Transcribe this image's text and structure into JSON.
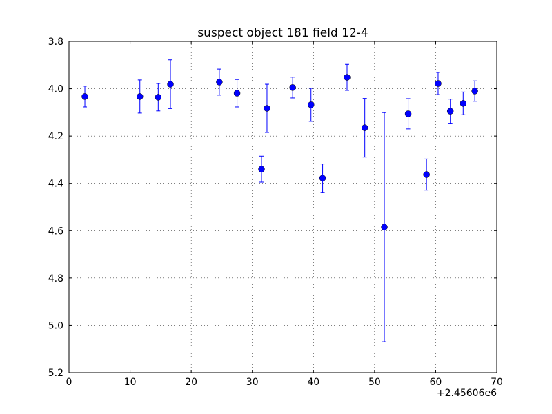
{
  "chart_data": {
    "type": "errorbar",
    "title": "suspect object 181 field 12-4",
    "x_offset_label": "+2.45606e6",
    "xlim": [
      0,
      70
    ],
    "xticks": [
      0,
      10,
      20,
      30,
      40,
      50,
      60,
      70
    ],
    "ylim": [
      3.8,
      5.2
    ],
    "y_inverted": true,
    "yticks": [
      3.8,
      {
        "value": 4,
        "label": "4.0"
      },
      4.2,
      4.4,
      4.6,
      4.8,
      {
        "value": 5,
        "label": "5.0"
      },
      5.2
    ],
    "grid": true,
    "series": [
      {
        "color": "#0000ff",
        "x": [
          2.6,
          11.6,
          14.6,
          16.6,
          24.6,
          27.5,
          31.5,
          32.4,
          36.6,
          39.6,
          41.5,
          45.5,
          48.4,
          51.6,
          55.5,
          58.5,
          60.4,
          62.4,
          64.5,
          66.4
        ],
        "values": [
          4.033,
          4.033,
          4.036,
          3.981,
          3.972,
          4.019,
          4.34,
          4.083,
          3.995,
          4.068,
          4.378,
          3.952,
          4.165,
          4.585,
          4.106,
          4.363,
          3.978,
          4.095,
          4.062,
          4.01
        ],
        "errors": [
          0.044,
          0.07,
          0.058,
          0.103,
          0.055,
          0.058,
          0.055,
          0.102,
          0.044,
          0.07,
          0.06,
          0.055,
          0.124,
          0.484,
          0.064,
          0.066,
          0.047,
          0.051,
          0.048,
          0.043
        ]
      }
    ]
  }
}
